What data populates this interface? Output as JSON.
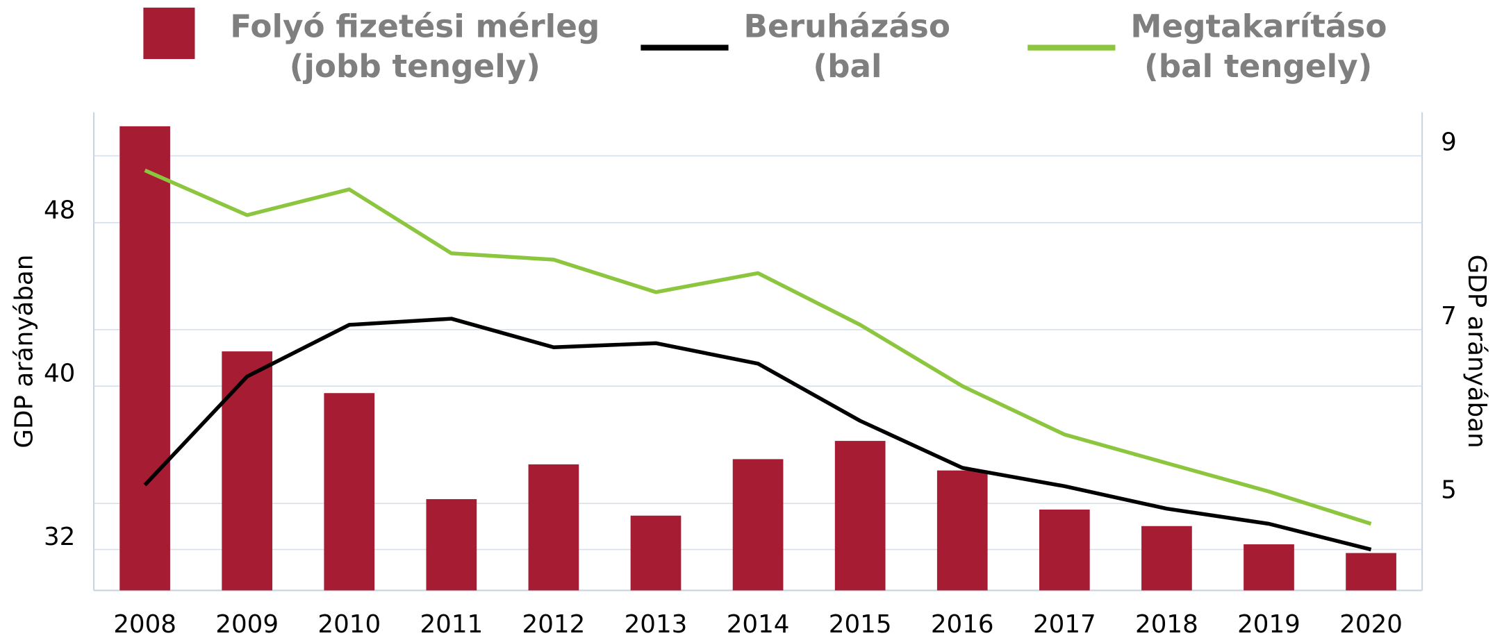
{
  "chart_data": {
    "type": "bar-line",
    "categories": [
      "2008",
      "2009",
      "2010",
      "2011",
      "2012",
      "2013",
      "2014",
      "2015",
      "2016",
      "2017",
      "2018",
      "2019",
      "2020"
    ],
    "series": [
      {
        "name": "Folyó fizetési mérleg\n(jobb tengely)",
        "type": "bar",
        "axis": "y2",
        "color": "#a51c33",
        "values": [
          9.34,
          6.75,
          6.27,
          5.05,
          5.45,
          4.86,
          5.51,
          5.72,
          5.38,
          4.93,
          4.74,
          4.53,
          4.43
        ]
      },
      {
        "name": "Beruházások\n(bal tengely)",
        "type": "line",
        "color": "#000000",
        "values": [
          35.16,
          40.47,
          43.0,
          43.3,
          41.9,
          42.1,
          41.1,
          38.3,
          36.0,
          35.1,
          34.0,
          33.26,
          32.0
        ]
      },
      {
        "name": "Megtakarítások\n(bal tengely)",
        "type": "line",
        "color": "#8cc63f",
        "values": [
          50.56,
          48.37,
          49.63,
          46.5,
          46.19,
          44.6,
          45.53,
          43.0,
          40.0,
          37.63,
          36.23,
          34.84,
          33.26
        ]
      }
    ],
    "ylabel": "GDP arányában",
    "y2label": "GDP arányában",
    "ylim": [
      30,
      53.4
    ],
    "yticks": [
      32,
      40,
      48
    ],
    "y2lim": [
      4,
      9.5
    ],
    "y2ticks": [
      5,
      7,
      9
    ],
    "grid": true,
    "legend": "top"
  }
}
